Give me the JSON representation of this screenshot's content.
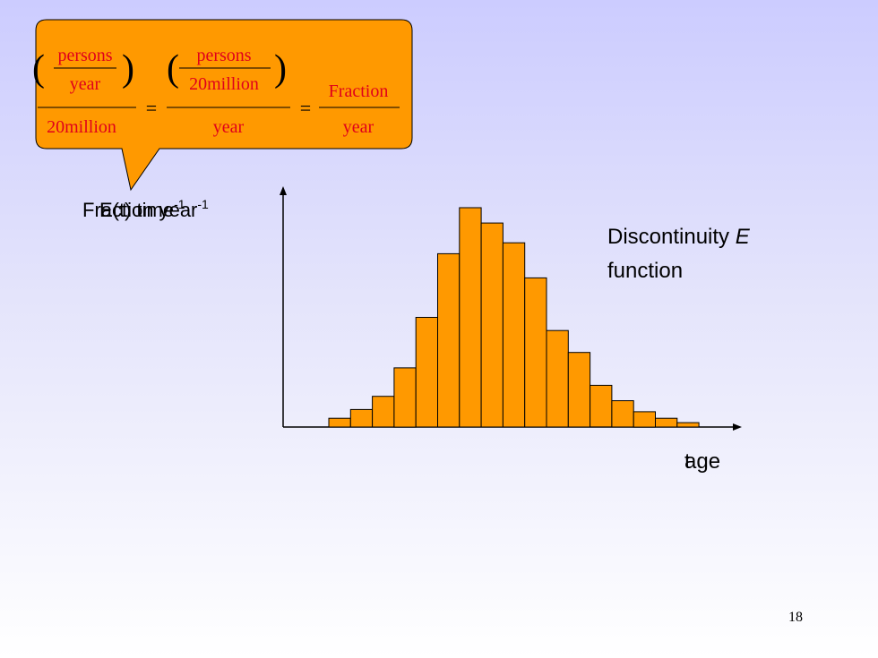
{
  "callout": {
    "fraction1": {
      "top_num": "persons",
      "top_den": "year",
      "den": "20million"
    },
    "fraction2": {
      "top_num": "persons",
      "top_den": "20million",
      "den": "year"
    },
    "fraction3": {
      "num": "Fraction",
      "den": "year"
    },
    "equals": "="
  },
  "labels": {
    "y_axis_a": "Fraction year",
    "y_axis_a_sup": "-1",
    "y_axis_b": "E(t) time",
    "y_axis_b_sup": "-1",
    "x_axis_a": "t",
    "x_axis_b": "age",
    "note_line1": "Discontinuity ",
    "note_italic": "E",
    "note_line2": "function",
    "page_number": "18"
  },
  "colors": {
    "bar_fill": "#ff9900",
    "bar_stroke": "#000000",
    "callout_fill": "#ff9900",
    "callout_text": "#e0001b"
  },
  "chart_data": {
    "type": "bar",
    "title": "",
    "xlabel": "age",
    "ylabel": "Fraction year-1",
    "values": [
      4,
      8,
      14,
      27,
      50,
      79,
      100,
      93,
      84,
      68,
      44,
      34,
      19,
      12,
      7,
      4,
      2
    ],
    "ylim": [
      0,
      100
    ],
    "grid": false
  }
}
